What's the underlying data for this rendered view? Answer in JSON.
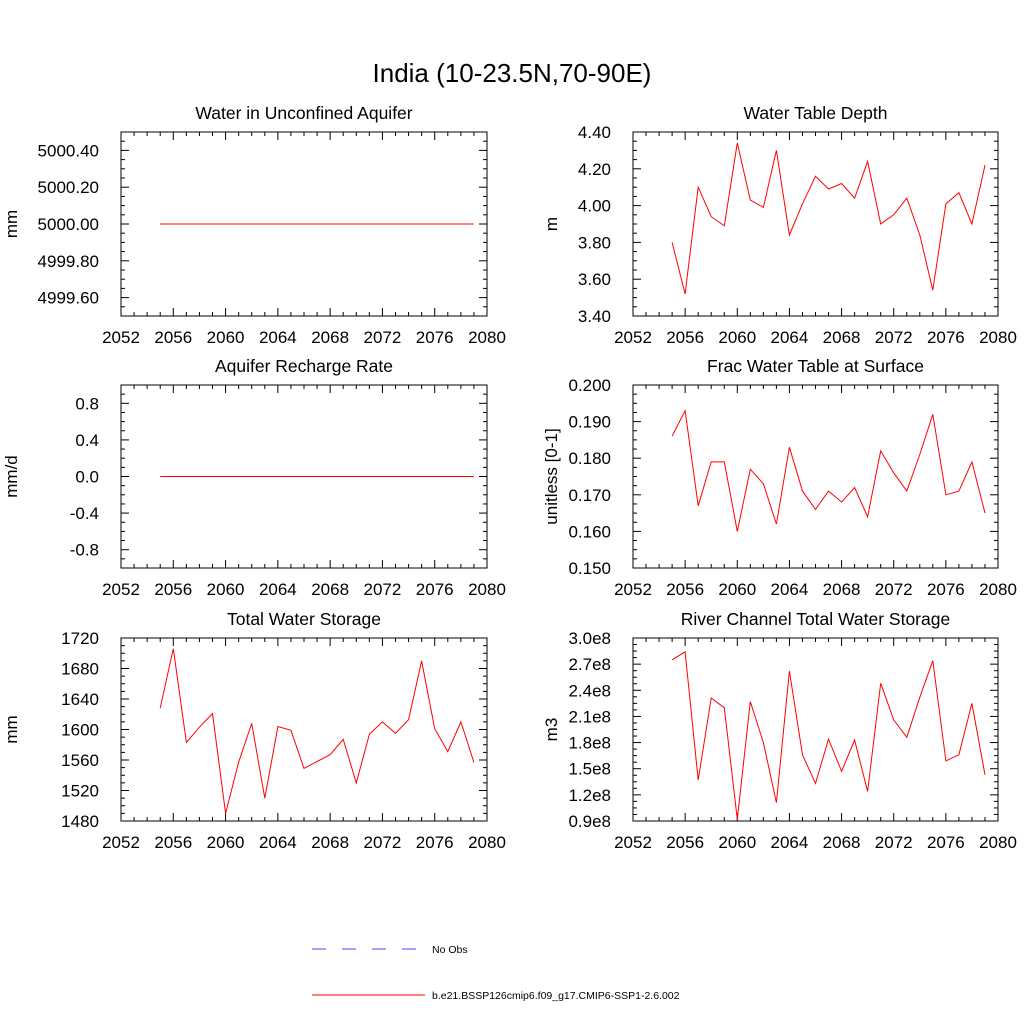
{
  "figure_title": "India (10-23.5N,70-90E)",
  "legend": {
    "entries": [
      {
        "label": "No Obs",
        "color": "#4a4aff",
        "style": "dashed"
      },
      {
        "label": "b.e21.BSSP126cmip6.f09_g17.CMIP6-SSP1-2.6.002",
        "color": "#ff0000",
        "style": "solid"
      }
    ]
  },
  "chart_data": [
    {
      "type": "line",
      "title": "Water in Unconfined Aquifer",
      "ylabel": "mm",
      "xlim": [
        2052,
        2080
      ],
      "ylim": [
        4999.5,
        5000.5
      ],
      "xticks": [
        2052,
        2056,
        2060,
        2064,
        2068,
        2072,
        2076,
        2080
      ],
      "yticks": [
        4999.6,
        4999.8,
        5000.0,
        5000.2,
        5000.4
      ],
      "ytick_labels": [
        "4999.60",
        "4999.80",
        "5000.00",
        "5000.20",
        "5000.40"
      ],
      "x": [
        2055,
        2056,
        2057,
        2058,
        2059,
        2060,
        2061,
        2062,
        2063,
        2064,
        2065,
        2066,
        2067,
        2068,
        2069,
        2070,
        2071,
        2072,
        2073,
        2074,
        2075,
        2076,
        2077,
        2078,
        2079
      ],
      "series": [
        {
          "values": [
            5000,
            5000,
            5000,
            5000,
            5000,
            5000,
            5000,
            5000,
            5000,
            5000,
            5000,
            5000,
            5000,
            5000,
            5000,
            5000,
            5000,
            5000,
            5000,
            5000,
            5000,
            5000,
            5000,
            5000,
            5000
          ]
        }
      ]
    },
    {
      "type": "line",
      "title": "Water Table Depth",
      "ylabel": "m",
      "xlim": [
        2052,
        2080
      ],
      "ylim": [
        3.4,
        4.4
      ],
      "xticks": [
        2052,
        2056,
        2060,
        2064,
        2068,
        2072,
        2076,
        2080
      ],
      "yticks": [
        3.4,
        3.6,
        3.8,
        4.0,
        4.2,
        4.4
      ],
      "ytick_labels": [
        "3.40",
        "3.60",
        "3.80",
        "4.00",
        "4.20",
        "4.40"
      ],
      "x": [
        2055,
        2056,
        2057,
        2058,
        2059,
        2060,
        2061,
        2062,
        2063,
        2064,
        2065,
        2066,
        2067,
        2068,
        2069,
        2070,
        2071,
        2072,
        2073,
        2074,
        2075,
        2076,
        2077,
        2078,
        2079
      ],
      "series": [
        {
          "values": [
            3.8,
            3.52,
            4.1,
            3.94,
            3.89,
            4.34,
            4.03,
            3.99,
            4.3,
            3.84,
            4.01,
            4.16,
            4.09,
            4.12,
            4.04,
            4.24,
            3.9,
            3.95,
            4.04,
            3.84,
            3.54,
            4.01,
            4.07,
            3.9,
            4.22
          ]
        }
      ]
    },
    {
      "type": "line",
      "title": "Aquifer Recharge Rate",
      "ylabel": "mm/d",
      "xlim": [
        2052,
        2080
      ],
      "ylim": [
        -1.0,
        1.0
      ],
      "xticks": [
        2052,
        2056,
        2060,
        2064,
        2068,
        2072,
        2076,
        2080
      ],
      "yticks": [
        -0.8,
        -0.4,
        0.0,
        0.4,
        0.8
      ],
      "ytick_labels": [
        "-0.8",
        "-0.4",
        "0.0",
        "0.4",
        "0.8"
      ],
      "x": [
        2055,
        2056,
        2057,
        2058,
        2059,
        2060,
        2061,
        2062,
        2063,
        2064,
        2065,
        2066,
        2067,
        2068,
        2069,
        2070,
        2071,
        2072,
        2073,
        2074,
        2075,
        2076,
        2077,
        2078,
        2079
      ],
      "series": [
        {
          "values": [
            0,
            0,
            0,
            0,
            0,
            0,
            0,
            0,
            0,
            0,
            0,
            0,
            0,
            0,
            0,
            0,
            0,
            0,
            0,
            0,
            0,
            0,
            0,
            0,
            0
          ]
        }
      ]
    },
    {
      "type": "line",
      "title": "Frac Water Table at Surface",
      "ylabel": "unitless [0-1]",
      "xlim": [
        2052,
        2080
      ],
      "ylim": [
        0.15,
        0.2
      ],
      "xticks": [
        2052,
        2056,
        2060,
        2064,
        2068,
        2072,
        2076,
        2080
      ],
      "yticks": [
        0.15,
        0.16,
        0.17,
        0.18,
        0.19,
        0.2
      ],
      "ytick_labels": [
        "0.150",
        "0.160",
        "0.170",
        "0.180",
        "0.190",
        "0.200"
      ],
      "x": [
        2055,
        2056,
        2057,
        2058,
        2059,
        2060,
        2061,
        2062,
        2063,
        2064,
        2065,
        2066,
        2067,
        2068,
        2069,
        2070,
        2071,
        2072,
        2073,
        2074,
        2075,
        2076,
        2077,
        2078,
        2079
      ],
      "series": [
        {
          "values": [
            0.186,
            0.193,
            0.167,
            0.179,
            0.179,
            0.16,
            0.177,
            0.173,
            0.162,
            0.183,
            0.171,
            0.166,
            0.171,
            0.168,
            0.172,
            0.164,
            0.182,
            0.176,
            0.171,
            0.181,
            0.192,
            0.17,
            0.171,
            0.179,
            0.165
          ]
        }
      ]
    },
    {
      "type": "line",
      "title": "Total Water Storage",
      "ylabel": "mm",
      "xlim": [
        2052,
        2080
      ],
      "ylim": [
        1480,
        1720
      ],
      "xticks": [
        2052,
        2056,
        2060,
        2064,
        2068,
        2072,
        2076,
        2080
      ],
      "yticks": [
        1480,
        1520,
        1560,
        1600,
        1640,
        1680,
        1720
      ],
      "ytick_labels": [
        "1480",
        "1520",
        "1560",
        "1600",
        "1640",
        "1680",
        "1720"
      ],
      "x": [
        2055,
        2056,
        2057,
        2058,
        2059,
        2060,
        2061,
        2062,
        2063,
        2064,
        2065,
        2066,
        2067,
        2068,
        2069,
        2070,
        2071,
        2072,
        2073,
        2074,
        2075,
        2076,
        2077,
        2078,
        2079
      ],
      "series": [
        {
          "values": [
            1628,
            1706,
            1583,
            1603,
            1621,
            1490,
            1557,
            1608,
            1510,
            1604,
            1599,
            1549,
            1558,
            1567,
            1587,
            1530,
            1594,
            1610,
            1595,
            1613,
            1690,
            1601,
            1571,
            1610,
            1557
          ]
        }
      ]
    },
    {
      "type": "line",
      "title": "River Channel Total Water Storage",
      "ylabel": "m3",
      "xlim": [
        2052,
        2080
      ],
      "ylim": [
        90000000.0,
        300000000.0
      ],
      "xticks": [
        2052,
        2056,
        2060,
        2064,
        2068,
        2072,
        2076,
        2080
      ],
      "yticks": [
        90000000.0,
        120000000.0,
        150000000.0,
        180000000.0,
        210000000.0,
        240000000.0,
        270000000.0,
        300000000.0
      ],
      "ytick_labels": [
        "0.9e8",
        "1.2e8",
        "1.5e8",
        "1.8e8",
        "2.1e8",
        "2.4e8",
        "2.7e8",
        "3.0e8"
      ],
      "x": [
        2055,
        2056,
        2057,
        2058,
        2059,
        2060,
        2061,
        2062,
        2063,
        2064,
        2065,
        2066,
        2067,
        2068,
        2069,
        2070,
        2071,
        2072,
        2073,
        2074,
        2075,
        2076,
        2077,
        2078,
        2079
      ],
      "series": [
        {
          "values": [
            275000000.0,
            284000000.0,
            137000000.0,
            231000000.0,
            220000000.0,
            92000000.0,
            227000000.0,
            180000000.0,
            111000000.0,
            262000000.0,
            166000000.0,
            133000000.0,
            184000000.0,
            147000000.0,
            183000000.0,
            124000000.0,
            248000000.0,
            206000000.0,
            186000000.0,
            232000000.0,
            274000000.0,
            159000000.0,
            166000000.0,
            225000000.0,
            143000000.0
          ]
        }
      ]
    }
  ]
}
